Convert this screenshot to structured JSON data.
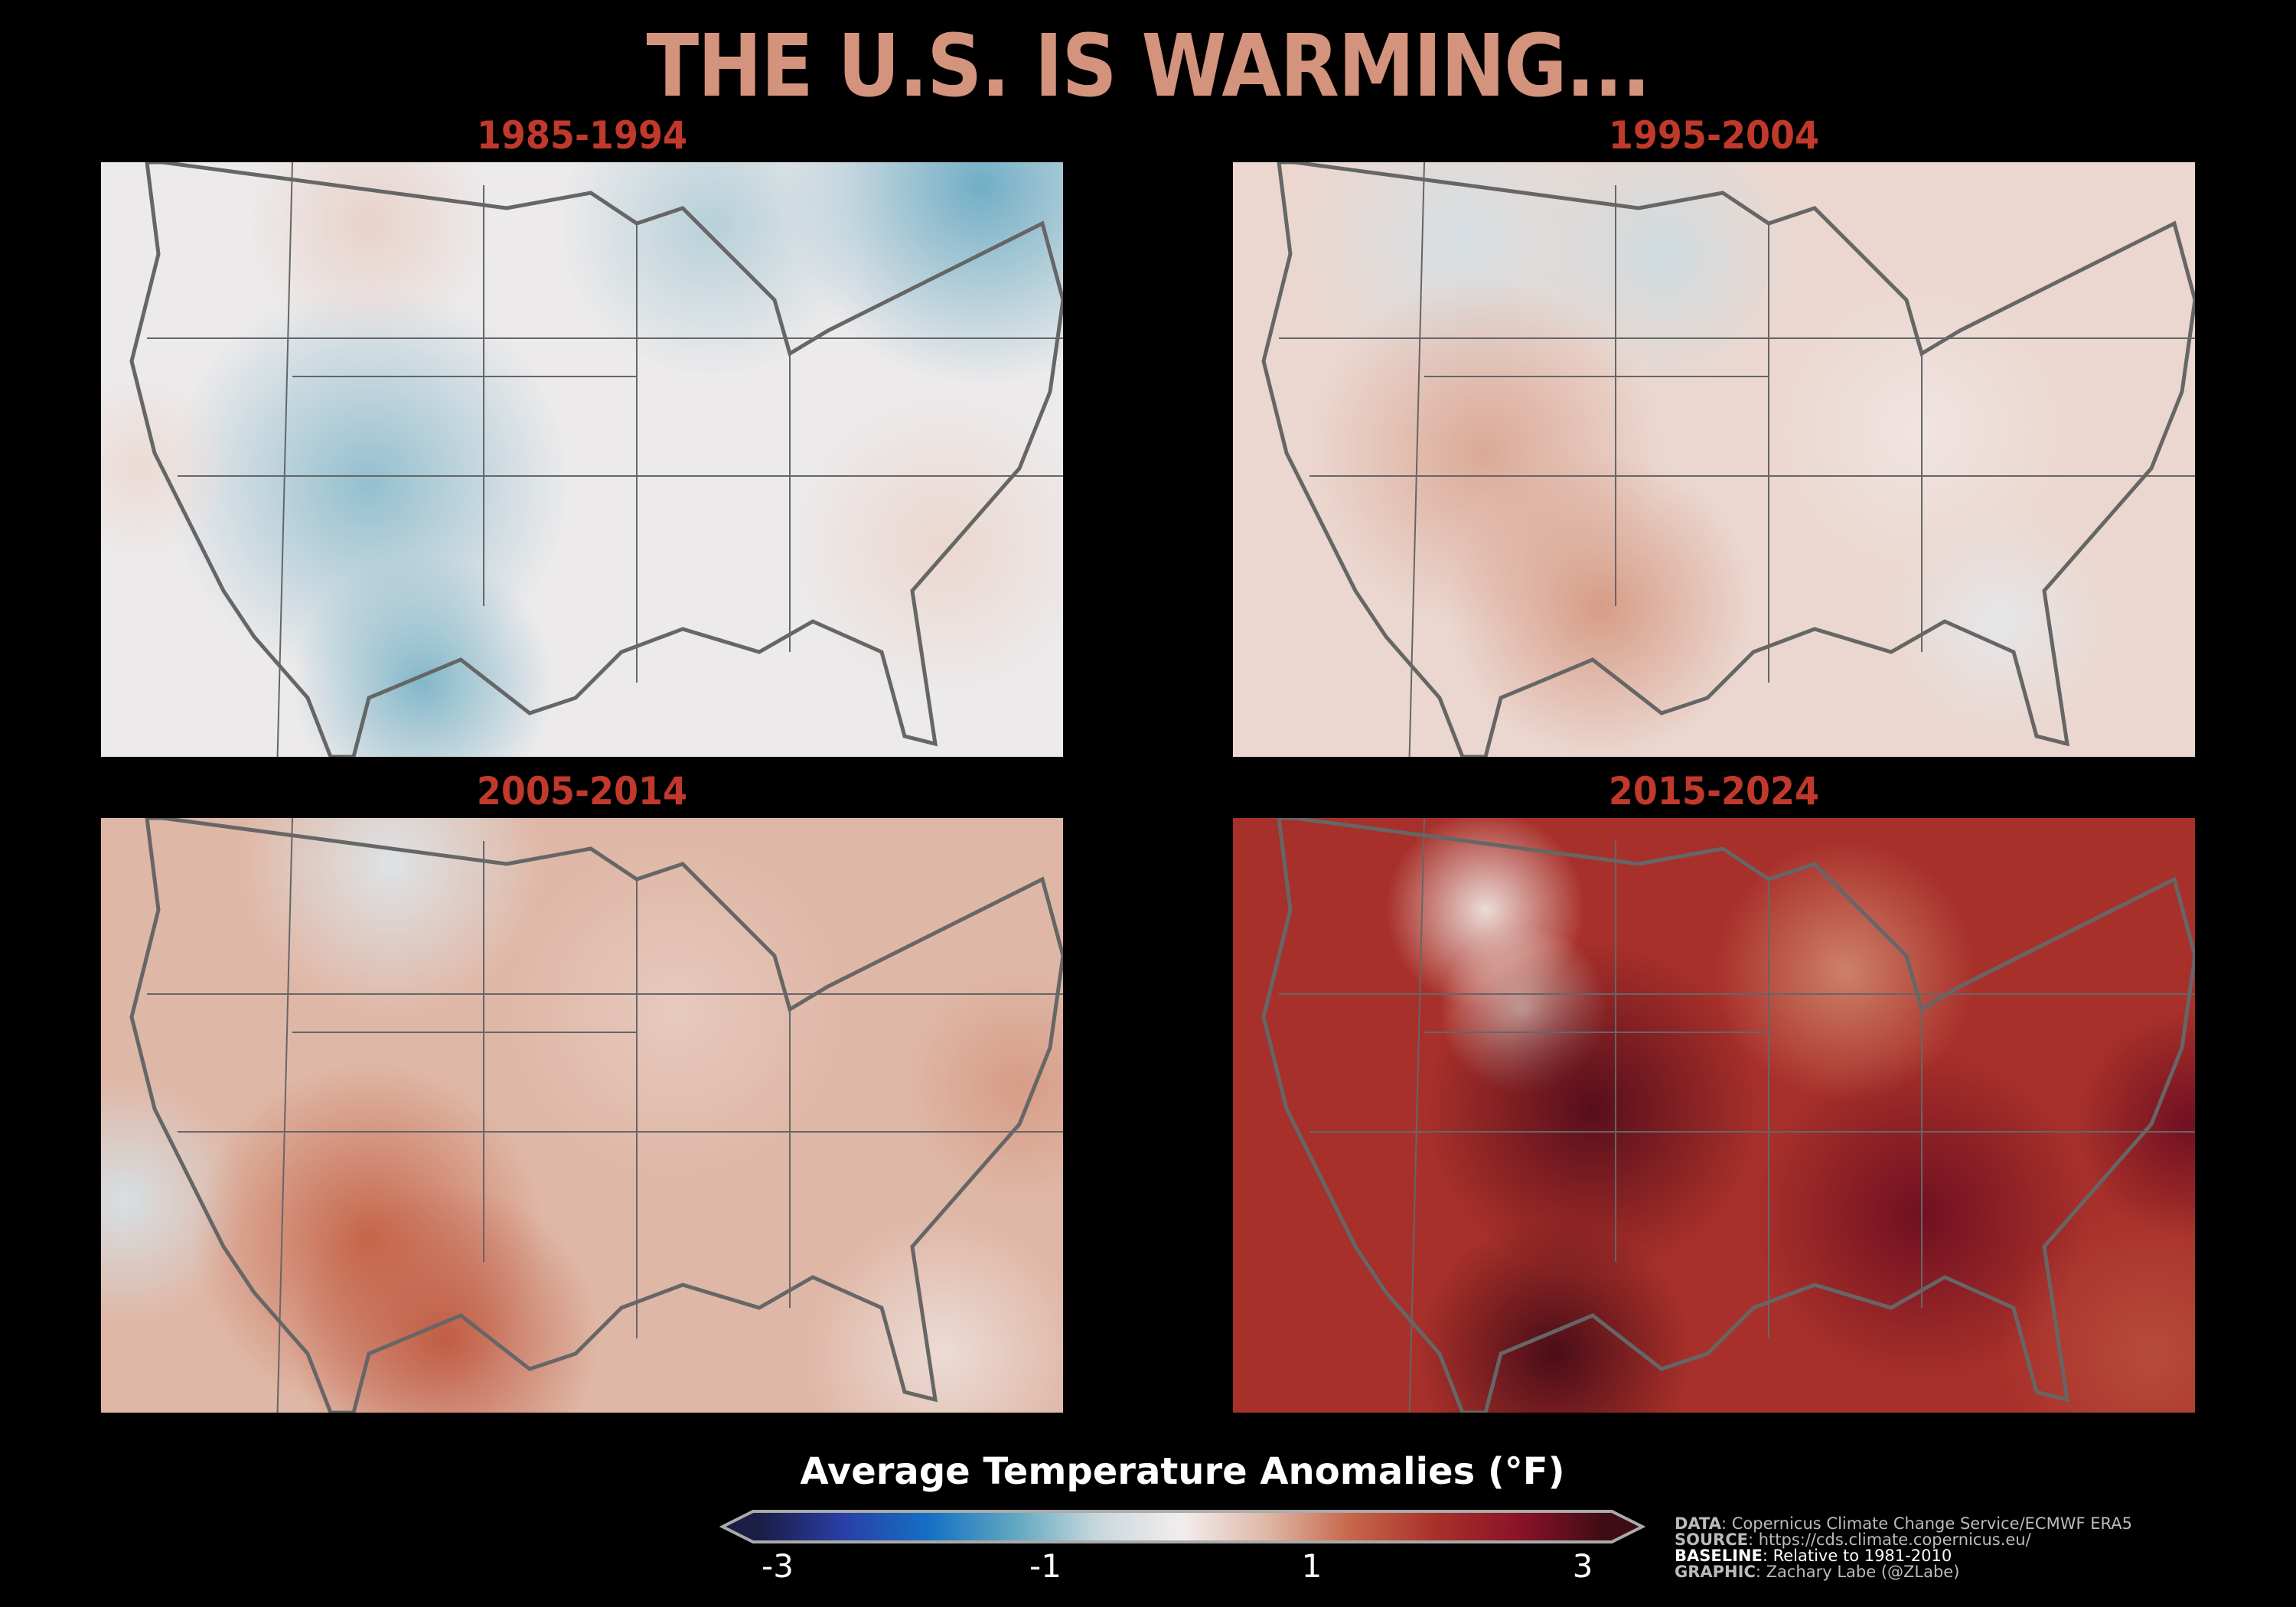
{
  "title": "THE U.S. IS WARMING...",
  "chart_data": {
    "type": "heatmap",
    "title": "THE U.S. IS WARMING...",
    "panels": [
      {
        "label": "1985-1994",
        "overall_tendency": "cool",
        "mean_anomaly_approx": -0.4
      },
      {
        "label": "1995-2004",
        "overall_tendency": "slightly warm",
        "mean_anomaly_approx": 0.3
      },
      {
        "label": "2005-2014",
        "overall_tendency": "warm",
        "mean_anomaly_approx": 0.8
      },
      {
        "label": "2015-2024",
        "overall_tendency": "hot",
        "mean_anomaly_approx": 2.0
      }
    ],
    "colorbar": {
      "label": "Average Temperature Anomalies (°F)",
      "range": [
        -3,
        3
      ],
      "ticks": [
        "-3",
        "-1",
        "1",
        "3"
      ],
      "colors": [
        "#1a1d44",
        "#2a3fa8",
        "#1470c4",
        "#5fa6c0",
        "#c9d8de",
        "#f3eded",
        "#dfb7a6",
        "#c6664a",
        "#a8302a",
        "#8a1228",
        "#3d0c14"
      ],
      "extend": "both"
    }
  },
  "credits": [
    {
      "key": "DATA",
      "value": ": Copernicus Climate Change Service/ECMWF ERA5"
    },
    {
      "key": "SOURCE",
      "value": ": https://cds.climate.copernicus.eu/"
    },
    {
      "key": "BASELINE",
      "value": ": Relative to 1981-2010"
    },
    {
      "key": "GRAPHIC",
      "value": ": Zachary Labe (@ZLabe)"
    }
  ]
}
